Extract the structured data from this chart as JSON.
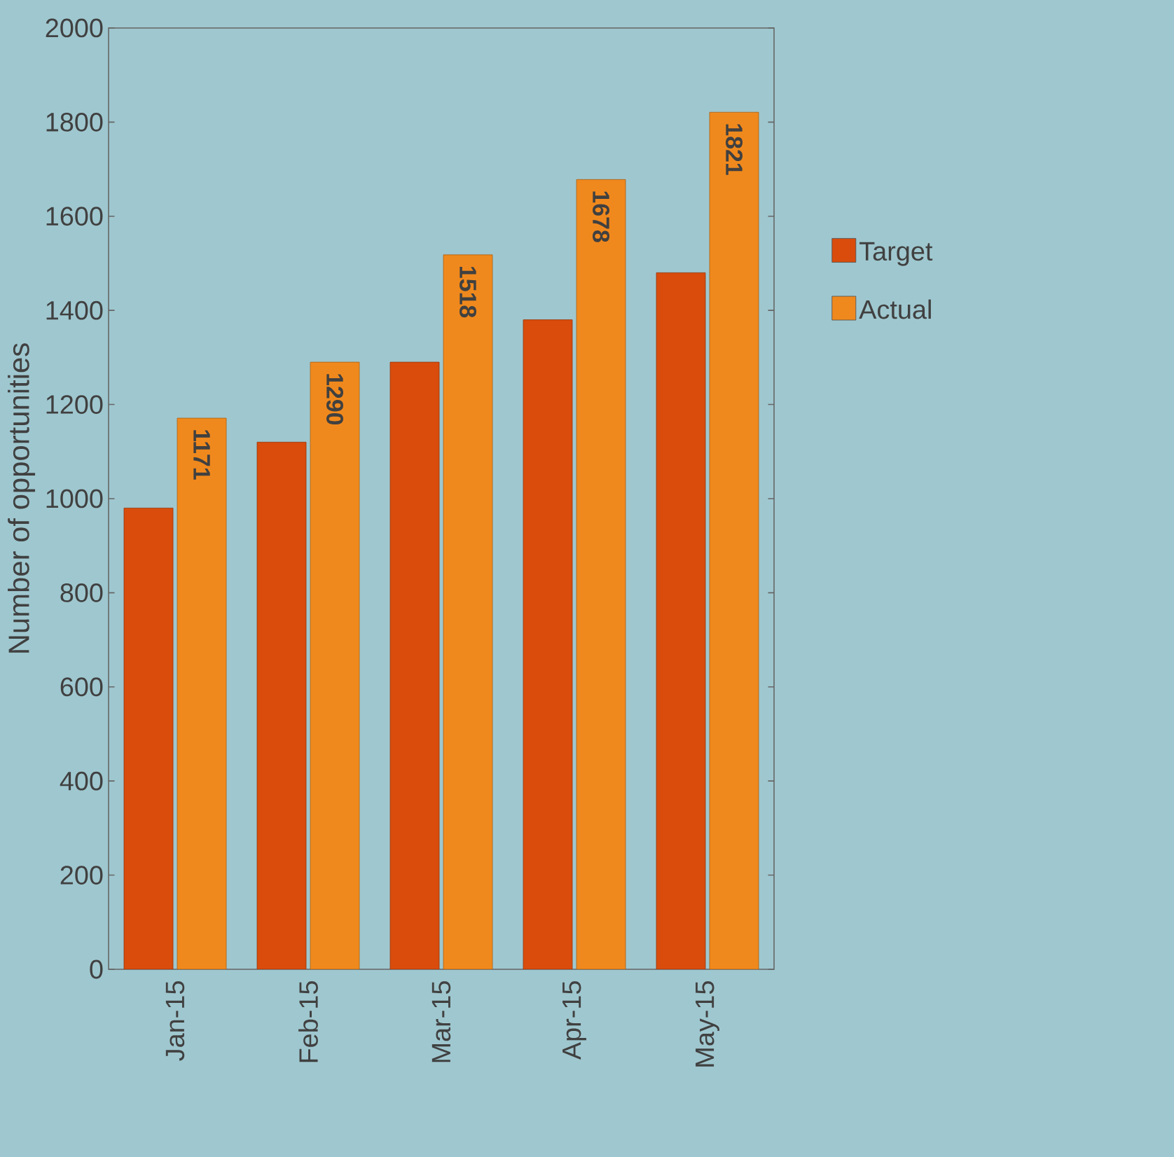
{
  "chart_data": {
    "type": "bar",
    "ylabel": "Number of opportunities",
    "categories": [
      "Jan-15",
      "Feb-15",
      "Mar-15",
      "Apr-15",
      "May-15"
    ],
    "series": [
      {
        "name": "Target",
        "color": "#d94c0c",
        "values": [
          980,
          1120,
          1290,
          1380,
          1480
        ]
      },
      {
        "name": "Actual",
        "color": "#f0891d",
        "values": [
          1171,
          1290,
          1518,
          1678,
          1821
        ],
        "value_labels": [
          "1171",
          "1290",
          "1518",
          "1678",
          "1821"
        ]
      }
    ],
    "ylim": [
      0,
      2000
    ],
    "yticks": [
      0,
      200,
      400,
      600,
      800,
      1000,
      1200,
      1400,
      1600,
      1800,
      2000
    ],
    "legend": "right",
    "grid": false
  }
}
